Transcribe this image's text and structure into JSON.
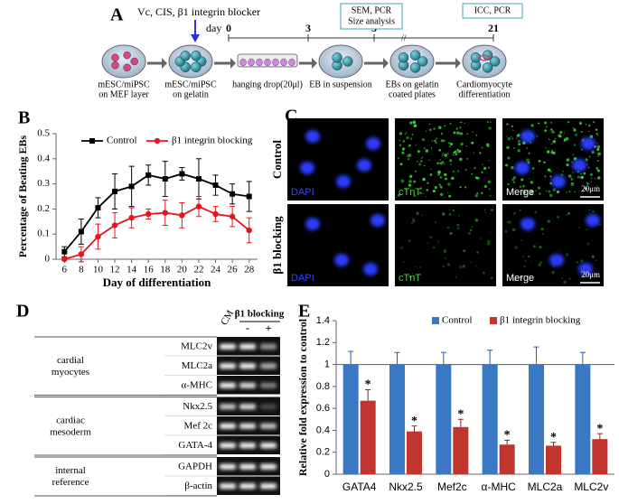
{
  "schematic": {
    "panel_label": "A",
    "treatment": "Vc, CIS, β1 integrin blocker",
    "day_label": "day",
    "days": [
      0,
      3,
      5,
      21
    ],
    "boxes": [
      "SEM, PCR",
      "Size analysis",
      "ICC, PCR"
    ],
    "steps": [
      [
        "mESC/miPSC",
        "on MEF layer"
      ],
      [
        "mESC/miPSC",
        "on gelatin"
      ],
      [
        "hanging drop(20μl)"
      ],
      [
        "EB in suspension"
      ],
      [
        "EBs on gelatin",
        "coated plates"
      ],
      [
        "Cardiomyocyte",
        "differentiation"
      ]
    ]
  },
  "microscopy": {
    "panel_label": "C",
    "rows": [
      "Control",
      "β1 blocking"
    ],
    "columns": [
      "DAPI",
      "cTnT",
      "Merge"
    ],
    "scale_bar": "20μm"
  },
  "gel": {
    "panel_label": "D",
    "lanes": [
      "CM",
      "-",
      "+"
    ],
    "treatment": "β1 blocking",
    "groups": [
      {
        "name": [
          "cardial",
          "myocytes"
        ],
        "genes": [
          "MLC2v",
          "MLC2a",
          "α-MHC"
        ]
      },
      {
        "name": [
          "cardiac",
          "mesoderm"
        ],
        "genes": [
          "Nkx2.5",
          "Mef 2c",
          "GATA-4"
        ]
      },
      {
        "name": [
          "internal",
          "reference"
        ],
        "genes": [
          "GAPDH",
          "β-actin"
        ]
      }
    ]
  },
  "chart_data": [
    {
      "type": "line",
      "panel_label": "B",
      "xlabel": "Day of differentiation",
      "ylabel": "Percentage of Beating EBs",
      "x": [
        6,
        8,
        10,
        12,
        14,
        16,
        18,
        20,
        22,
        24,
        26,
        28
      ],
      "xlim": [
        5,
        29
      ],
      "xticks": [
        6,
        8,
        10,
        12,
        14,
        16,
        18,
        20,
        22,
        24,
        26,
        28
      ],
      "ylim": [
        0,
        0.5
      ],
      "yticks": [
        0,
        0.1,
        0.2,
        0.3,
        0.4,
        0.5
      ],
      "legend": "top",
      "series": [
        {
          "name": "Control",
          "color": "#000000",
          "marker": "square",
          "values": [
            0.03,
            0.11,
            0.205,
            0.27,
            0.29,
            0.335,
            0.32,
            0.34,
            0.32,
            0.295,
            0.26,
            0.25
          ],
          "errors": [
            0.02,
            0.05,
            0.04,
            0.07,
            0.08,
            0.04,
            0.07,
            0.025,
            0.08,
            0.04,
            0.04,
            0.06
          ]
        },
        {
          "name": "β1 integrin blocking",
          "color": "#e8141b",
          "marker": "circle",
          "values": [
            0.0,
            0.02,
            0.09,
            0.135,
            0.165,
            0.18,
            0.185,
            0.175,
            0.21,
            0.18,
            0.17,
            0.115
          ],
          "errors": [
            0.005,
            0.03,
            0.05,
            0.05,
            0.04,
            0.02,
            0.05,
            0.05,
            0.04,
            0.03,
            0.04,
            0.05
          ]
        }
      ]
    },
    {
      "type": "bar",
      "panel_label": "E",
      "ylabel": "Relative fold expression to control",
      "categories": [
        "GATA4",
        "Nkx2.5",
        "Mef2c",
        "α-MHC",
        "MLC2a",
        "MLC2v"
      ],
      "ylim": [
        0,
        1.4
      ],
      "yticks": [
        0,
        0.2,
        0.4,
        0.6,
        0.8,
        1,
        1.2,
        1.4
      ],
      "reference_line": 1,
      "reference_color": "#3a78c3",
      "legend": "top-right",
      "series": [
        {
          "name": "Control",
          "color": "#3a78c3",
          "values": [
            1,
            1,
            1,
            1,
            1,
            1
          ],
          "errors": [
            0.12,
            0.11,
            0.11,
            0.13,
            0.16,
            0.11
          ]
        },
        {
          "name": "β1 integrin blocking",
          "color": "#c0352e",
          "values": [
            0.67,
            0.39,
            0.43,
            0.27,
            0.26,
            0.32
          ],
          "errors": [
            0.1,
            0.05,
            0.07,
            0.04,
            0.03,
            0.05
          ],
          "significance": [
            "*",
            "*",
            "*",
            "*",
            "*",
            "*"
          ]
        }
      ]
    }
  ]
}
